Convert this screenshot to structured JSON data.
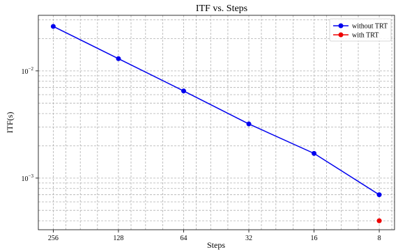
{
  "chart_data": {
    "type": "line",
    "title": "ITF vs. Steps",
    "xlabel": "Steps",
    "ylabel": "ITF(s)",
    "x_scale": "log2-reversed",
    "y_scale": "log",
    "x_ticks": [
      "256",
      "128",
      "64",
      "32",
      "16",
      "8"
    ],
    "y_ticks": [
      {
        "value": 0.01,
        "base": "10",
        "exp": "−2"
      },
      {
        "value": 0.001,
        "base": "10",
        "exp": "−3"
      }
    ],
    "ylim": [
      0.00033,
      0.033
    ],
    "xlim": [
      300,
      6.8
    ],
    "grid": true,
    "legend_position": "top-right",
    "series": [
      {
        "name": "without TRT",
        "color": "#0000ee",
        "line": true,
        "points": [
          {
            "x": 256,
            "y": 0.026
          },
          {
            "x": 128,
            "y": 0.013
          },
          {
            "x": 64,
            "y": 0.0065
          },
          {
            "x": 32,
            "y": 0.0032
          },
          {
            "x": 16,
            "y": 0.0017
          },
          {
            "x": 8,
            "y": 0.0007
          }
        ]
      },
      {
        "name": "with TRT",
        "color": "#ee0000",
        "line": false,
        "points": [
          {
            "x": 8,
            "y": 0.0004
          }
        ]
      }
    ]
  }
}
